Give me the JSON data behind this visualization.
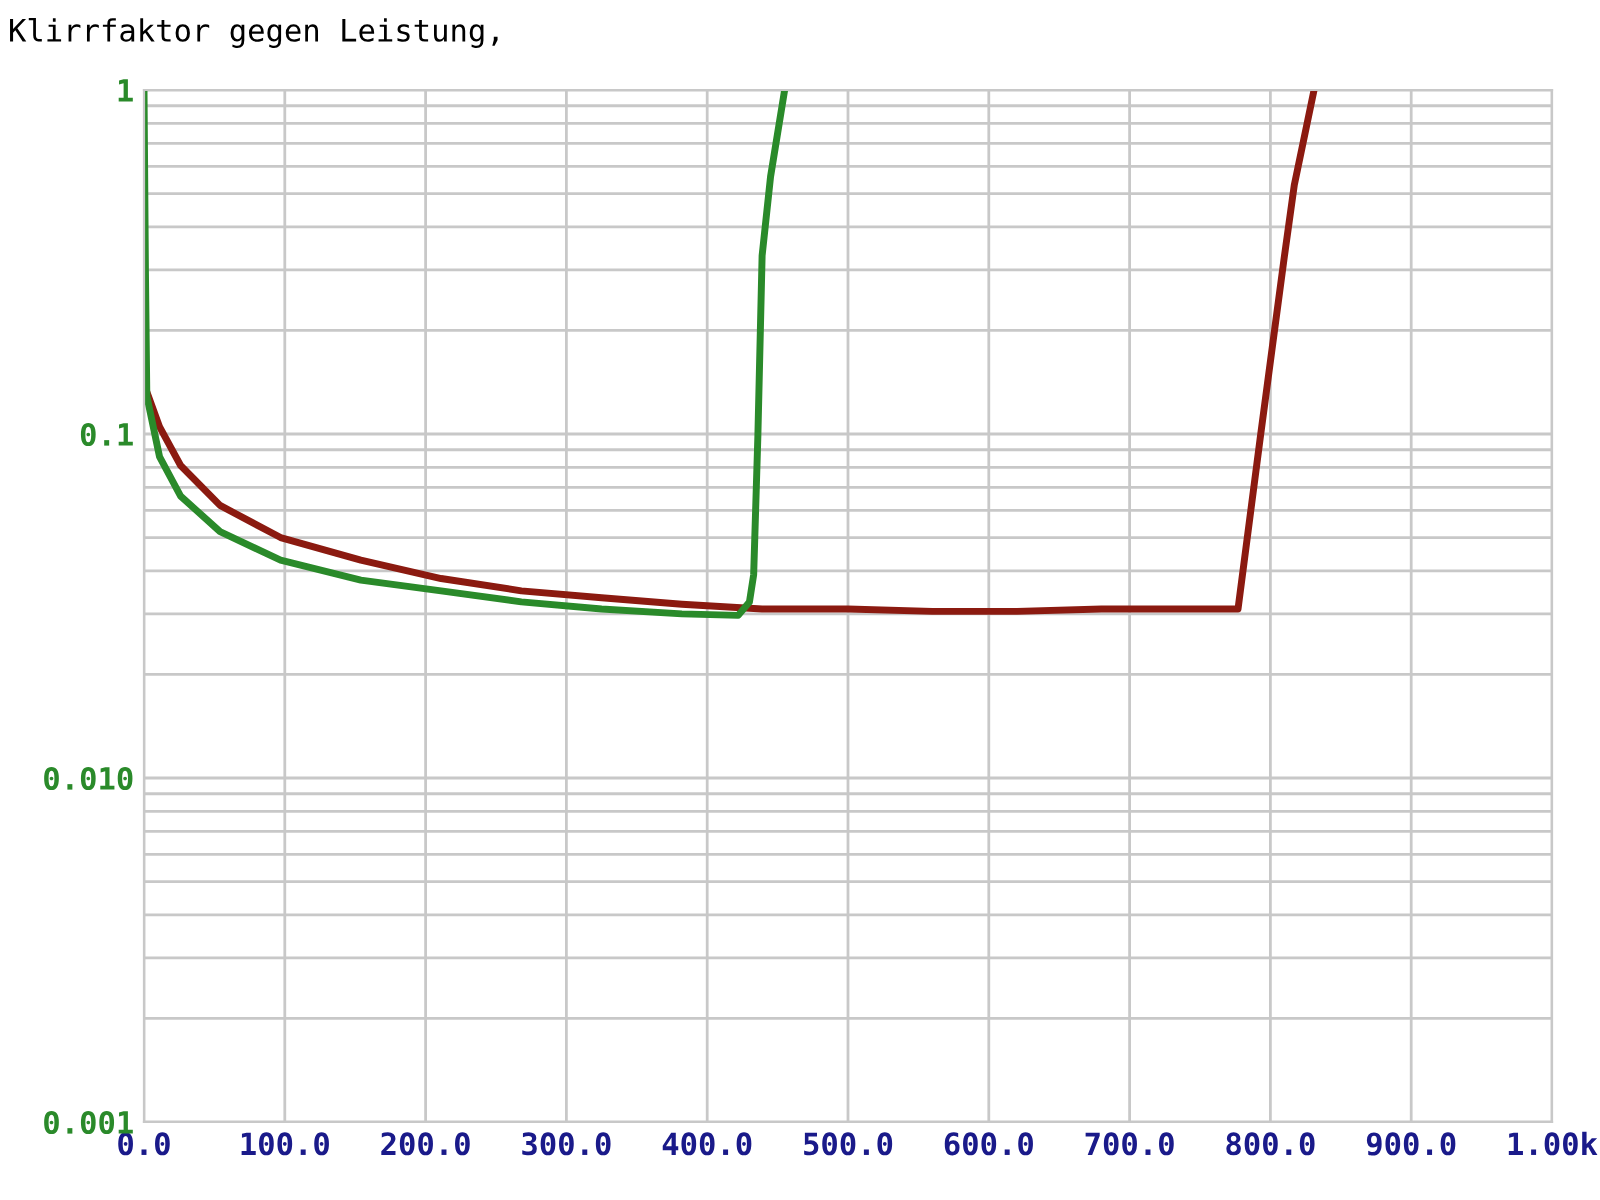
{
  "chart_data": {
    "type": "line",
    "title": "Klirrfaktor gegen Leistung,",
    "log": "y",
    "grid": true,
    "marker": "none",
    "line_style": "solid",
    "xlim": [
      0,
      1000
    ],
    "xticks": [
      {
        "value": 0,
        "label": "0.0"
      },
      {
        "value": 100,
        "label": "100.0"
      },
      {
        "value": 200,
        "label": "200.0"
      },
      {
        "value": 300,
        "label": "300.0"
      },
      {
        "value": 400,
        "label": "400.0"
      },
      {
        "value": 500,
        "label": "500.0"
      },
      {
        "value": 600,
        "label": "600.0"
      },
      {
        "value": 700,
        "label": "700.0"
      },
      {
        "value": 800,
        "label": "800.0"
      },
      {
        "value": 900,
        "label": "900.0"
      },
      {
        "value": 1000,
        "label": "1.00k"
      }
    ],
    "ylim": [
      0.001,
      1
    ],
    "yticks": [
      {
        "value": 0.001,
        "label": "0.001"
      },
      {
        "value": 0.01,
        "label": "0.010"
      },
      {
        "value": 0.1,
        "label": "0.1"
      },
      1
    ],
    "series": [
      {
        "color": "#8b1a10",
        "x": [
          1,
          11,
          26,
          54,
          97,
          154,
          211,
          268,
          325,
          382,
          439,
          500,
          560,
          620,
          680,
          720,
          777,
          793,
          810,
          817,
          831
        ],
        "values": [
          0.136,
          0.105,
          0.081,
          0.062,
          0.05,
          0.043,
          0.038,
          0.035,
          0.0334,
          0.032,
          0.031,
          0.031,
          0.0305,
          0.0305,
          0.031,
          0.031,
          0.031,
          0.099,
          0.33,
          0.53,
          1
        ]
      },
      {
        "color": "#2a8a2a",
        "x": [
          0,
          1,
          2,
          11,
          26,
          54,
          97,
          154,
          211,
          268,
          325,
          382,
          422,
          430,
          433,
          436,
          439,
          445,
          455
        ],
        "values": [
          1,
          0.3,
          0.129,
          0.086,
          0.066,
          0.052,
          0.043,
          0.0376,
          0.035,
          0.0325,
          0.031,
          0.03,
          0.0297,
          0.0325,
          0.039,
          0.099,
          0.33,
          0.56,
          1
        ]
      }
    ]
  }
}
